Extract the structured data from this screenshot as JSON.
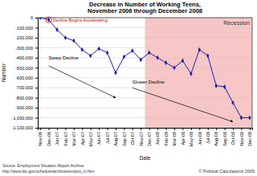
{
  "chart_data": {
    "type": "line",
    "title": "Decrease in Number of Working Teens, November 2006 through December 2008",
    "x_label": "Date",
    "y_label": "Number",
    "categories": [
      "Nov-06",
      "Dec-06",
      "Jan-07",
      "Feb-07",
      "Mar-07",
      "Apr-07",
      "May-07",
      "Jun-07",
      "Jul-07",
      "Aug-07",
      "Sep-07",
      "Oct-07",
      "Nov-07",
      "Dec-07",
      "Jan-08",
      "Feb-08",
      "Mar-08",
      "Apr-08",
      "May-08",
      "Jun-08",
      "Jul-08",
      "Aug-08",
      "Sep-08",
      "Oct-08",
      "Nov-08",
      "Dec-08"
    ],
    "values": [
      0,
      -20000,
      -120000,
      -200000,
      -230000,
      -320000,
      -380000,
      -310000,
      -350000,
      -550000,
      -390000,
      -330000,
      -420000,
      -350000,
      -400000,
      -450000,
      -500000,
      -430000,
      -560000,
      -320000,
      -380000,
      -680000,
      -690000,
      -850000,
      -1000000,
      -1000000
    ],
    "color": "#1f1fa8",
    "marker": "diamond",
    "grid": true,
    "ylim": [
      -1100000,
      0
    ],
    "yticks": [
      0,
      {
        "value": -100000,
        "label": "-100,000"
      },
      {
        "value": -200000,
        "label": "-200,000"
      },
      {
        "value": -300000,
        "label": "-300,000"
      },
      {
        "value": -400000,
        "label": "-400,000"
      },
      {
        "value": -500000,
        "label": "-500,000"
      },
      {
        "value": -600000,
        "label": "-600,000"
      },
      {
        "value": -700000,
        "label": "-700,000"
      },
      {
        "value": -800000,
        "label": "-800,000"
      },
      {
        "value": -900000,
        "label": "-900,000"
      },
      {
        "value": -1000000,
        "label": "-1,000,000"
      },
      {
        "value": -1100000,
        "label": "-1,100,000"
      }
    ],
    "shaded_region": {
      "label": "Recession",
      "start": "Dec-07",
      "end": "Dec-08"
    },
    "annotations": [
      "Decline Begins Accelerating",
      "Steep Decline",
      "Slower Decline"
    ],
    "source": "Source: Employment Situation Report Archive",
    "source_url": "http://www.bls.gov/schedule/archives/empsit_nr.htm",
    "credit": "© Political Calculations 2009"
  }
}
